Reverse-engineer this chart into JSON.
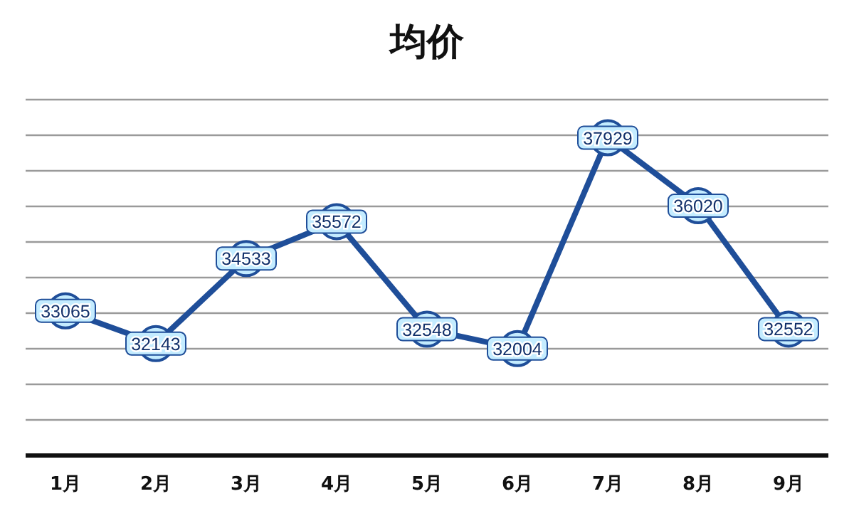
{
  "chart_data": {
    "type": "line",
    "title": "均价",
    "categories": [
      "1月",
      "2月",
      "3月",
      "4月",
      "5月",
      "6月",
      "7月",
      "8月",
      "9月"
    ],
    "series": [
      {
        "color": "#1f4e99",
        "values": [
          33065,
          32143,
          34533,
          35572,
          32548,
          32004,
          37929,
          36020,
          32552
        ]
      }
    ],
    "ylim": [
      29000,
      39000
    ],
    "yticks": [
      {
        "value": 29000,
        "label": null
      },
      {
        "value": 30000,
        "label": null
      },
      {
        "value": 31000,
        "label": null
      },
      {
        "value": 32000,
        "label": null
      },
      {
        "value": 33000,
        "label": null
      },
      {
        "value": 34000,
        "label": null
      },
      {
        "value": 35000,
        "label": null
      },
      {
        "value": 36000,
        "label": null
      },
      {
        "value": 37000,
        "label": null
      },
      {
        "value": 38000,
        "label": null
      },
      {
        "value": 39000,
        "label": null
      }
    ],
    "tick_labels": "x",
    "grid": "y",
    "marker": "circle",
    "line_style": "solid",
    "data_labels": true
  }
}
